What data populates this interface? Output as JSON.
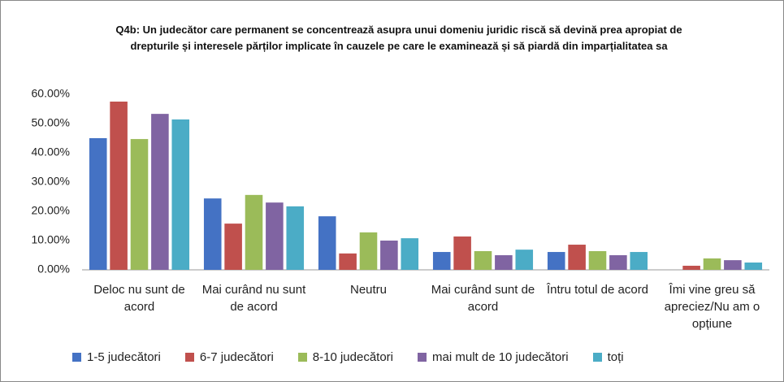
{
  "chart_data": {
    "type": "bar",
    "title": "Q4b: Un judecător care permanent se concentrează asupra unui domeniu juridic riscă să devină prea apropiat de drepturile și interesele părților implicate în cauzele pe care le examinează și să piardă din imparțialitatea sa",
    "categories": [
      "Deloc nu sunt de acord",
      "Mai curând nu sunt de acord",
      "Neutru",
      "Mai curând sunt de acord",
      "Întru totul de acord",
      "Îmi vine greu să apreciez/Nu am o opțiune"
    ],
    "series": [
      {
        "name": "1-5 judecători",
        "color": "#4472c4",
        "values": [
          45.0,
          24.4,
          18.3,
          6.1,
          6.1,
          0
        ]
      },
      {
        "name": "6-7 judecători",
        "color": "#c0504d",
        "values": [
          57.5,
          15.8,
          5.6,
          11.4,
          8.6,
          1.4
        ]
      },
      {
        "name": "8-10 judecători",
        "color": "#9bbb59",
        "values": [
          44.7,
          25.6,
          12.8,
          6.4,
          6.4,
          3.9
        ]
      },
      {
        "name": "mai mult de 10 judecători",
        "color": "#8064a2",
        "values": [
          53.3,
          23.0,
          10.0,
          5.0,
          5.0,
          3.3
        ]
      },
      {
        "name": "toți",
        "color": "#4bacc6",
        "values": [
          51.4,
          21.7,
          10.8,
          6.9,
          6.1,
          2.5
        ]
      }
    ],
    "ylim": [
      0,
      60
    ],
    "yticks": [
      {
        "value": 0,
        "label": "0.00%"
      },
      {
        "value": 10,
        "label": "10.00%"
      },
      {
        "value": 20,
        "label": "20.00%"
      },
      {
        "value": 30,
        "label": "30.00%"
      },
      {
        "value": 40,
        "label": "40.00%"
      },
      {
        "value": 50,
        "label": "50.00%"
      },
      {
        "value": 60,
        "label": "60.00%"
      }
    ],
    "grid": false,
    "legend": "bottom"
  }
}
